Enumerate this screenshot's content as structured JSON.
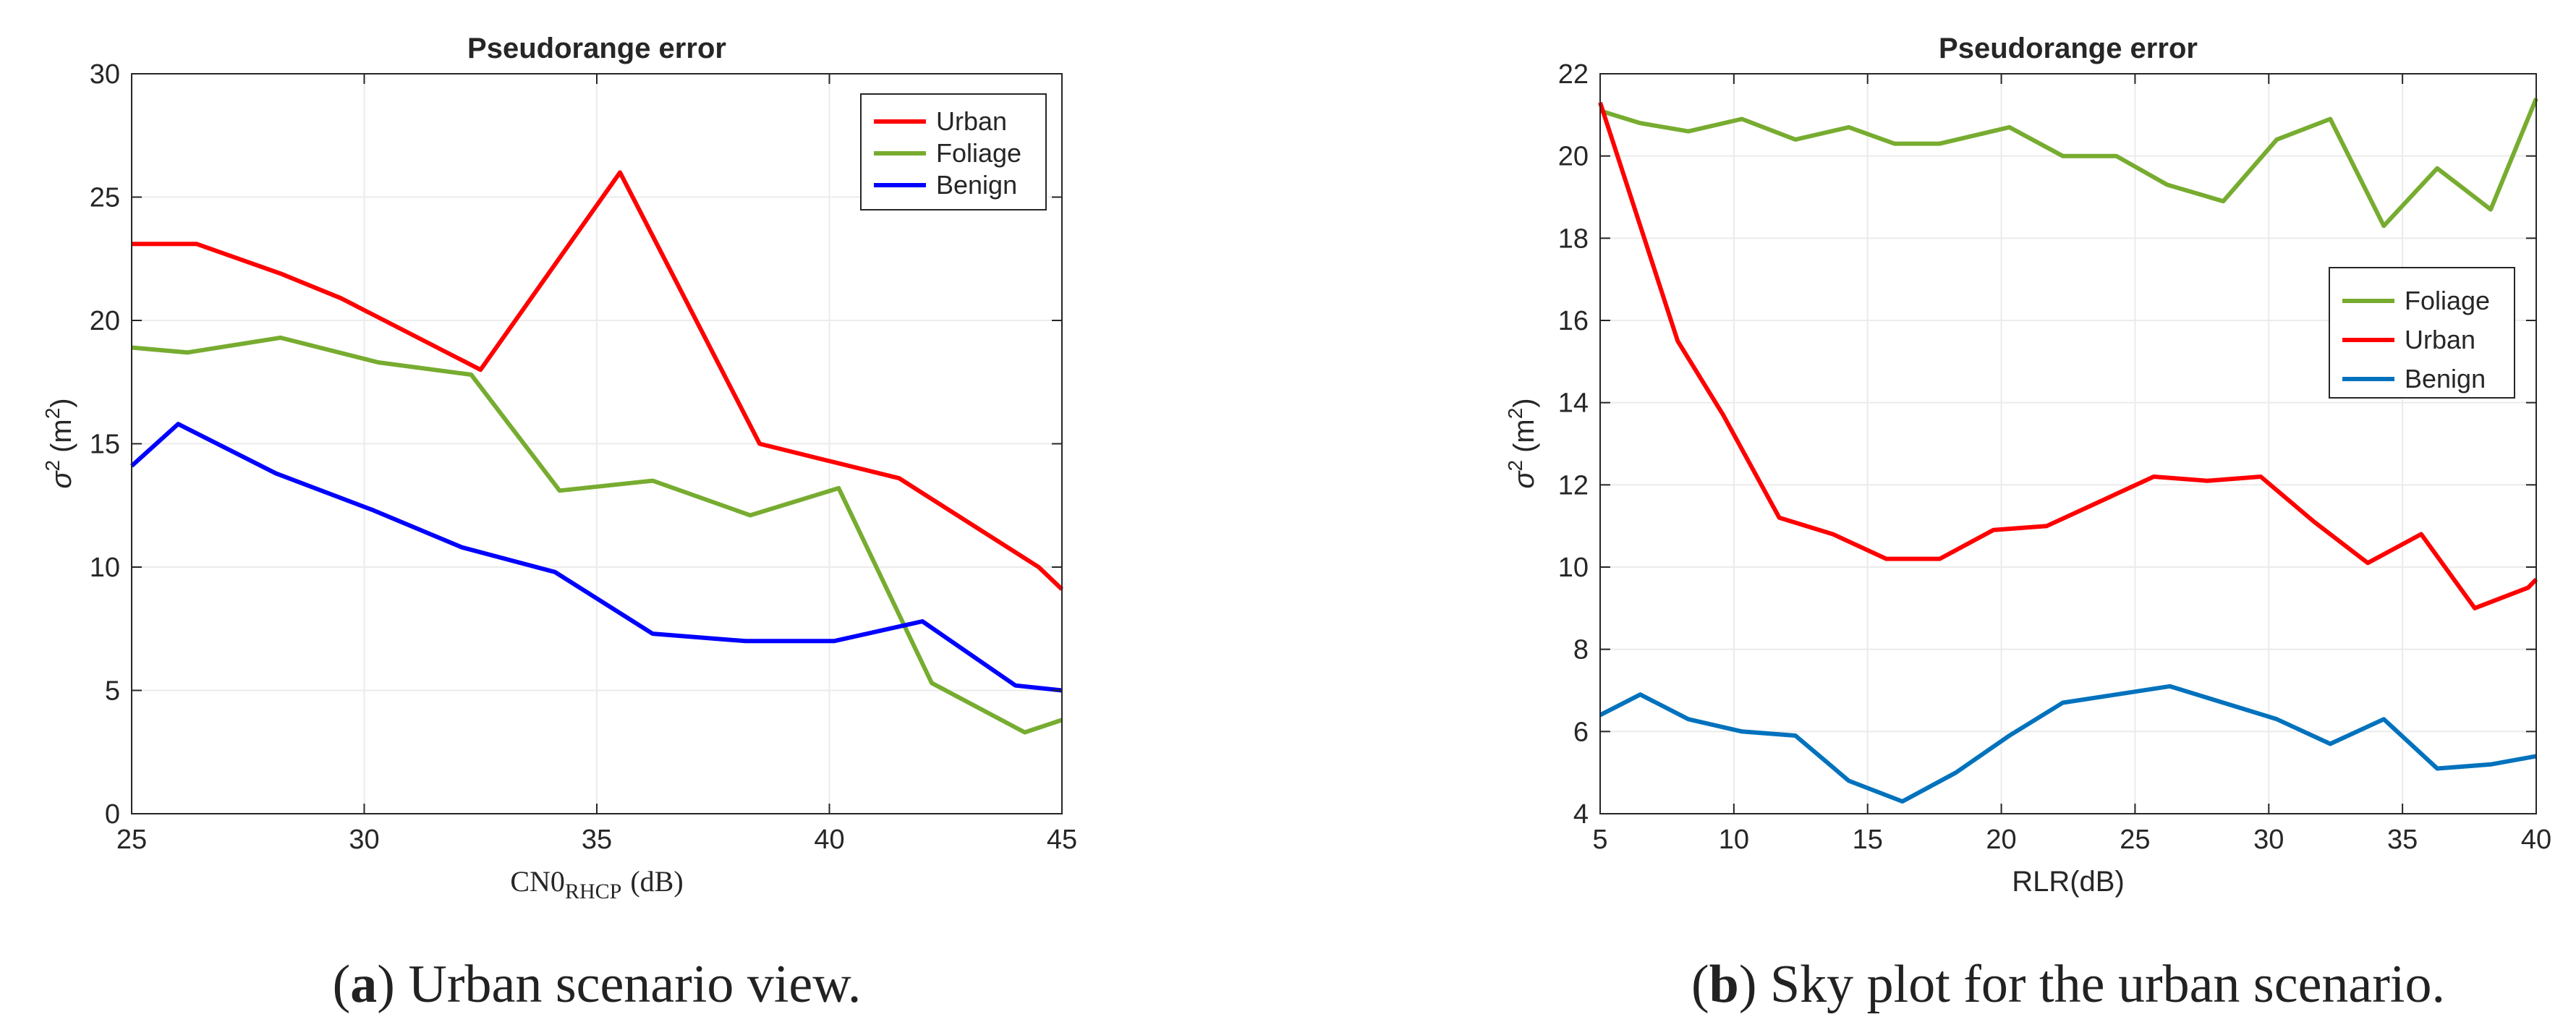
{
  "chart_data": [
    {
      "type": "line",
      "title": "Pseudorange error",
      "xlabel_main": "CN0",
      "xlabel_sub": "RHCP",
      "xlabel_unit": "(dB)",
      "ylabel_base": "σ",
      "ylabel_exp": "2",
      "ylabel_unit_open": "(m",
      "ylabel_unit_exp": "2",
      "ylabel_unit_close": ")",
      "xlim": [
        25,
        45
      ],
      "ylim": [
        0,
        30
      ],
      "xticks": [
        25,
        30,
        35,
        40,
        45
      ],
      "yticks": [
        0,
        5,
        10,
        15,
        20,
        25,
        30
      ],
      "legend_position": "top-right",
      "series": [
        {
          "name": "Urban",
          "color": "#ff0000",
          "x": [
            25,
            26.4,
            28.2,
            29.5,
            32.5,
            35.5,
            38.5,
            40,
            41.5,
            44.5,
            45
          ],
          "y": [
            23.1,
            23.1,
            21.9,
            20.9,
            18.0,
            26.0,
            15.0,
            14.3,
            13.6,
            10.0,
            9.1
          ]
        },
        {
          "name": "Foliage",
          "color": "#77ac30",
          "x": [
            25,
            26.2,
            28.2,
            30.3,
            32.3,
            34.2,
            36.2,
            38.3,
            40.2,
            42.2,
            44.2,
            45
          ],
          "y": [
            18.9,
            18.7,
            19.3,
            18.3,
            17.8,
            13.1,
            13.5,
            12.1,
            13.2,
            5.3,
            3.3,
            3.8
          ]
        },
        {
          "name": "Benign",
          "color": "#0000ff",
          "x": [
            25,
            26,
            28.1,
            30.2,
            32.1,
            34.1,
            36.2,
            38.2,
            40.1,
            42,
            44,
            45
          ],
          "y": [
            14.1,
            15.8,
            13.8,
            12.3,
            10.8,
            9.8,
            7.3,
            7.0,
            7.0,
            7.8,
            5.2,
            5.0
          ]
        }
      ],
      "caption_label": "a",
      "caption_text": "Urban scenario view."
    },
    {
      "type": "line",
      "title": "Pseudorange error",
      "xlabel": "RLR(dB)",
      "ylabel_base": "σ",
      "ylabel_exp": "2",
      "ylabel_unit_open": "(m",
      "ylabel_unit_exp": "2",
      "ylabel_unit_close": ")",
      "xlim": [
        5,
        40
      ],
      "ylim": [
        4,
        22
      ],
      "xticks": [
        5,
        10,
        15,
        20,
        25,
        30,
        35,
        40
      ],
      "yticks": [
        4,
        6,
        8,
        10,
        12,
        14,
        16,
        18,
        20,
        22
      ],
      "legend_position": "right",
      "series": [
        {
          "name": "Foliage",
          "color": "#77ac30",
          "x": [
            5,
            6.5,
            8.3,
            10.3,
            12.3,
            14.3,
            16,
            17.7,
            20.3,
            22.3,
            24.3,
            26.2,
            28.3,
            30.3,
            32.3,
            34.3,
            36.3,
            38.3,
            40
          ],
          "y": [
            21.1,
            20.8,
            20.6,
            20.9,
            20.4,
            20.7,
            20.3,
            20.3,
            20.7,
            20.0,
            20.0,
            19.3,
            18.9,
            20.4,
            20.9,
            18.3,
            19.7,
            18.7,
            21.4
          ]
        },
        {
          "name": "Urban",
          "color": "#ff0000",
          "x": [
            5,
            6.5,
            7.9,
            9.6,
            11.7,
            13.7,
            15.7,
            17.7,
            19.7,
            21.7,
            23.7,
            25.7,
            27.7,
            29.7,
            31.7,
            33.7,
            35.7,
            37.7,
            39.7,
            40
          ],
          "y": [
            21.3,
            18.3,
            15.5,
            13.7,
            11.2,
            10.8,
            10.2,
            10.2,
            10.9,
            11.0,
            11.6,
            12.2,
            12.1,
            12.2,
            11.1,
            10.1,
            10.8,
            9.0,
            9.5,
            9.7
          ]
        },
        {
          "name": "Benign",
          "color": "#0072bd",
          "x": [
            5,
            6.5,
            8.3,
            10.3,
            12.3,
            14.3,
            16.3,
            18.3,
            20.3,
            22.3,
            24.3,
            26.3,
            28.3,
            30.3,
            32.3,
            34.3,
            36.3,
            38.3,
            40
          ],
          "y": [
            6.4,
            6.9,
            6.3,
            6.0,
            5.9,
            4.8,
            4.3,
            5.0,
            5.9,
            6.7,
            6.9,
            7.1,
            6.7,
            6.3,
            5.7,
            6.3,
            5.1,
            5.2,
            5.4
          ]
        }
      ],
      "caption_label": "b",
      "caption_text": "Sky plot for the urban scenario."
    }
  ]
}
